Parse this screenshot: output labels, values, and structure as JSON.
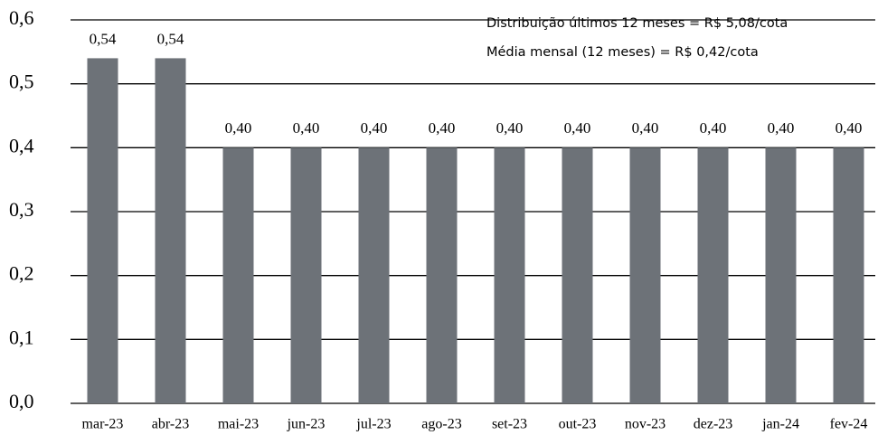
{
  "chart_data": {
    "type": "bar",
    "annotations": [
      "Distribuição últimos 12 meses = R$ 5,08/cota",
      "Média mensal (12 meses) = R$ 0,42/cota"
    ],
    "categories": [
      "mar-23",
      "abr-23",
      "mai-23",
      "jun-23",
      "jul-23",
      "ago-23",
      "set-23",
      "out-23",
      "nov-23",
      "dez-23",
      "jan-24",
      "fev-24"
    ],
    "values": [
      0.54,
      0.54,
      0.4,
      0.4,
      0.4,
      0.4,
      0.4,
      0.4,
      0.4,
      0.4,
      0.4,
      0.4
    ],
    "value_labels": [
      "0,54",
      "0,54",
      "0,40",
      "0,40",
      "0,40",
      "0,40",
      "0,40",
      "0,40",
      "0,40",
      "0,40",
      "0,40",
      "0,40"
    ],
    "color": "#6d7278",
    "ylim": [
      0,
      0.6
    ],
    "yticks": [
      {
        "value": 0,
        "label": "0,0"
      },
      {
        "value": 0.1,
        "label": "0,1"
      },
      {
        "value": 0.2,
        "label": "0,2"
      },
      {
        "value": 0.3,
        "label": "0,3"
      },
      {
        "value": 0.4,
        "label": "0,4"
      },
      {
        "value": 0.5,
        "label": "0,5"
      },
      {
        "value": 0.6,
        "label": "0,6"
      }
    ],
    "grid": true
  }
}
